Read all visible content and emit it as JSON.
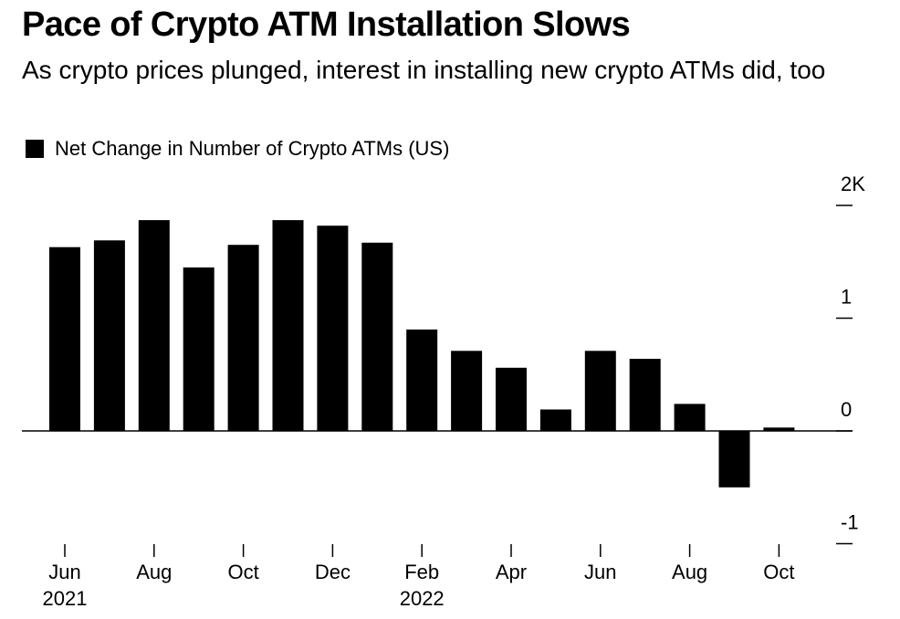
{
  "title": "Pace of Crypto ATM Installation Slows",
  "subtitle": "As crypto prices plunged, interest in installing new crypto ATMs did, too",
  "chart_data": {
    "type": "bar",
    "legend": {
      "label": "Net Change in Number of Crypto ATMs (US)",
      "placement": "top-left"
    },
    "series": [
      {
        "name": "Net Change in Number of Crypto ATMs (US)",
        "color": "#000000",
        "values": [
          1.63,
          1.69,
          1.87,
          1.45,
          1.65,
          1.87,
          1.82,
          1.67,
          0.9,
          0.71,
          0.56,
          0.19,
          0.71,
          0.64,
          0.24,
          -0.5,
          0.03
        ]
      }
    ],
    "categories": [
      "2021-06",
      "2021-07",
      "2021-08",
      "2021-09",
      "2021-10",
      "2021-11",
      "2021-12",
      "2022-01",
      "2022-02",
      "2022-03",
      "2022-04",
      "2022-05",
      "2022-06",
      "2022-07",
      "2022-08",
      "2022-09",
      "2022-10"
    ],
    "x_ticks": [
      {
        "category": "2021-06",
        "label": "Jun",
        "sublabel": "2021"
      },
      {
        "category": "2021-08",
        "label": "Aug",
        "sublabel": ""
      },
      {
        "category": "2021-10",
        "label": "Oct",
        "sublabel": ""
      },
      {
        "category": "2021-12",
        "label": "Dec",
        "sublabel": ""
      },
      {
        "category": "2022-02",
        "label": "Feb",
        "sublabel": "2022"
      },
      {
        "category": "2022-04",
        "label": "Apr",
        "sublabel": ""
      },
      {
        "category": "2022-06",
        "label": "Jun",
        "sublabel": ""
      },
      {
        "category": "2022-08",
        "label": "Aug",
        "sublabel": ""
      },
      {
        "category": "2022-10",
        "label": "Oct",
        "sublabel": ""
      }
    ],
    "y_ticks": [
      {
        "value": 2,
        "label": "2K"
      },
      {
        "value": 1,
        "label": "1"
      },
      {
        "value": 0,
        "label": "0"
      },
      {
        "value": -1,
        "label": "-1"
      }
    ],
    "ylim": [
      -1,
      2
    ],
    "y_axis_side": "right",
    "grid": false
  }
}
